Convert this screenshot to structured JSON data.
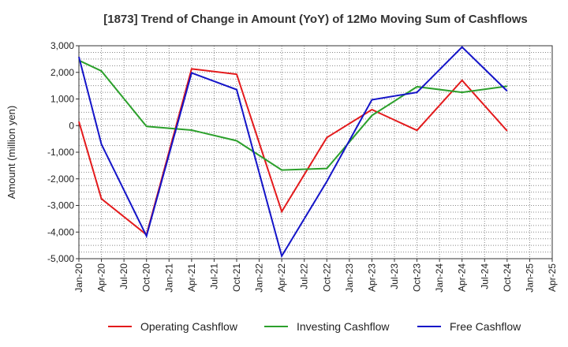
{
  "chart_data": {
    "type": "line",
    "title": "[1873]  Trend of Change in Amount (YoY) of 12Mo Moving Sum of Cashflows",
    "xlabel": "",
    "ylabel": "Amount (million yen)",
    "ylim": [
      -5000,
      3000
    ],
    "yticks": [
      3000,
      2000,
      1000,
      0,
      -1000,
      -2000,
      -3000,
      -4000,
      -5000
    ],
    "ytick_labels": [
      "3,000",
      "2,000",
      "1,000",
      "0",
      "-1,000",
      "-2,000",
      "-3,000",
      "-4,000",
      "-5,000"
    ],
    "categories": [
      "Jan-20",
      "Apr-20",
      "Jul-20",
      "Oct-20",
      "Jan-21",
      "Apr-21",
      "Jul-21",
      "Oct-21",
      "Jan-22",
      "Apr-22",
      "Jul-22",
      "Oct-22",
      "Jan-23",
      "Apr-23",
      "Jul-23",
      "Oct-23",
      "Jan-24",
      "Apr-24",
      "Jul-24",
      "Oct-24",
      "Jan-25",
      "Apr-25"
    ],
    "series": [
      {
        "name": "Operating Cashflow",
        "color": "#e31a1c",
        "values": [
          150,
          -2750,
          null,
          -4100,
          null,
          2130,
          null,
          1930,
          null,
          -3230,
          null,
          -450,
          null,
          600,
          null,
          -180,
          null,
          1700,
          null,
          -200,
          null,
          null
        ]
      },
      {
        "name": "Investing Cashflow",
        "color": "#2ca02c",
        "values": [
          2450,
          2050,
          null,
          -30,
          null,
          -170,
          null,
          -570,
          null,
          -1670,
          null,
          -1610,
          null,
          380,
          null,
          1460,
          null,
          1250,
          null,
          1480,
          null,
          null
        ]
      },
      {
        "name": "Free Cashflow",
        "color": "#1414c8",
        "values": [
          2580,
          -700,
          null,
          -4150,
          null,
          1980,
          null,
          1350,
          null,
          -4900,
          null,
          -2100,
          null,
          970,
          null,
          1250,
          null,
          2950,
          null,
          1300,
          null,
          null
        ]
      }
    ],
    "legend": "bottom",
    "grid": true
  }
}
